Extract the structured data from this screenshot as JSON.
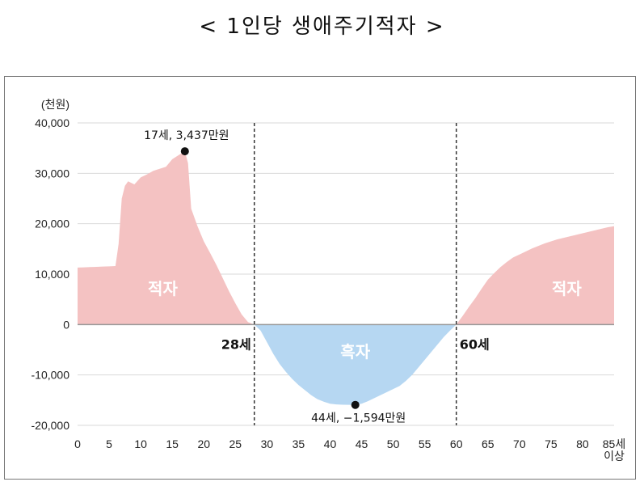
{
  "title": "< 1인당 생애주기적자 >",
  "chart_data": {
    "type": "area",
    "unit_label": "(천원)",
    "ylim": [
      -20000,
      40000
    ],
    "y_ticks": [
      40000,
      30000,
      20000,
      10000,
      0,
      -10000,
      -20000
    ],
    "y_tick_labels": [
      "40,000",
      "30,000",
      "20,000",
      "10,000",
      "0",
      "-10,000",
      "-20,000"
    ],
    "xlim": [
      0,
      85
    ],
    "x_ticks": [
      0,
      5,
      10,
      15,
      20,
      25,
      30,
      35,
      40,
      45,
      50,
      55,
      60,
      65,
      70,
      75,
      80,
      85
    ],
    "x_tick_labels": [
      "0",
      "5",
      "10",
      "15",
      "20",
      "25",
      "30",
      "35",
      "40",
      "45",
      "50",
      "55",
      "60",
      "65",
      "70",
      "75",
      "80",
      "85세"
    ],
    "x_last_sublabel": "이상",
    "grid": true,
    "colors": {
      "deficit": "#f4c2c2",
      "surplus": "#b6d7f2",
      "grid": "#d9d9d9",
      "axis": "#999999",
      "divider": "#333333"
    },
    "series": [
      {
        "values_x": [
          0,
          1,
          2,
          3,
          4,
          5,
          6,
          6.5,
          7,
          7.5,
          8,
          8.5,
          9,
          10,
          11,
          12,
          13,
          14,
          15,
          16,
          17,
          17.5,
          18,
          19,
          20,
          21,
          22,
          23,
          24,
          25,
          26,
          27,
          28,
          29,
          30,
          31,
          32,
          33,
          34,
          35,
          36,
          37,
          38,
          39,
          40,
          41,
          42,
          43,
          44,
          45,
          46,
          47,
          48,
          49,
          50,
          51,
          52,
          53,
          54,
          55,
          56,
          57,
          58,
          59,
          60,
          61,
          62,
          63,
          64,
          65,
          66,
          67,
          68,
          69,
          70,
          71,
          72,
          73,
          74,
          75,
          76,
          77,
          78,
          79,
          80,
          81,
          82,
          83,
          84,
          85
        ],
        "values_y": [
          11300,
          11350,
          11400,
          11450,
          11500,
          11550,
          11600,
          16000,
          25000,
          27500,
          28400,
          28100,
          27800,
          29200,
          29800,
          30500,
          30900,
          31300,
          32800,
          33600,
          34370,
          32000,
          23000,
          19500,
          16500,
          14200,
          11800,
          9200,
          6600,
          4200,
          2000,
          500,
          0,
          -1200,
          -3500,
          -5800,
          -7800,
          -9400,
          -10800,
          -12000,
          -13000,
          -14000,
          -14800,
          -15300,
          -15700,
          -15850,
          -15900,
          -15920,
          -15940,
          -15700,
          -15200,
          -14600,
          -14000,
          -13400,
          -12800,
          -12200,
          -11200,
          -10000,
          -8500,
          -7000,
          -5500,
          -4000,
          -2500,
          -1200,
          0,
          1700,
          3500,
          5200,
          7100,
          8900,
          10200,
          11400,
          12400,
          13300,
          13900,
          14500,
          15100,
          15600,
          16100,
          16500,
          16900,
          17200,
          17500,
          17800,
          18100,
          18400,
          18700,
          19000,
          19300,
          19500
        ]
      }
    ],
    "dividers_x": [
      28,
      60
    ],
    "annotations": {
      "peak_label": "17세, 3,437만원",
      "peak_point": {
        "x": 17,
        "y": 34370
      },
      "trough_label": "44세, −1,594만원",
      "trough_point": {
        "x": 44,
        "y": -15940
      },
      "age28_label": "28세",
      "age60_label": "60세",
      "region_left_label": "적자",
      "region_mid_label": "흑자",
      "region_right_label": "적자"
    }
  }
}
